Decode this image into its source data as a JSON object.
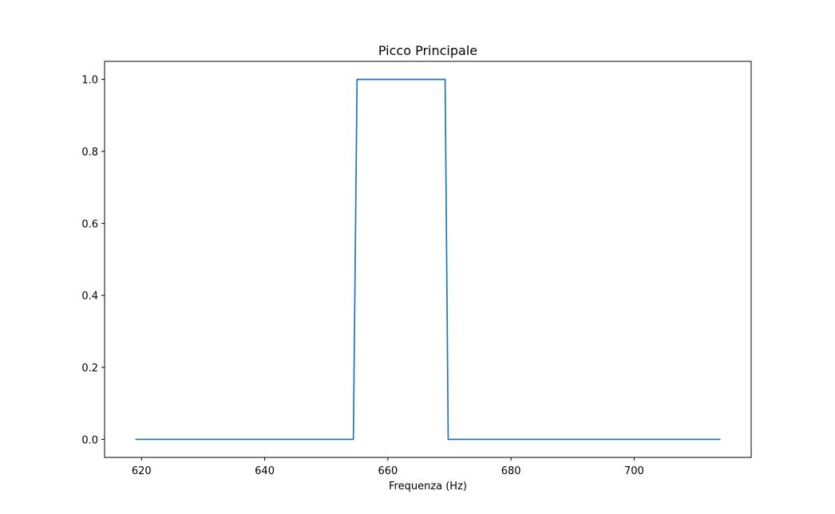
{
  "chart_data": {
    "type": "line",
    "title": "Picco Principale",
    "xlabel": "Frequenza (Hz)",
    "ylabel": "",
    "xlim": [
      614,
      719
    ],
    "ylim": [
      -0.05,
      1.05
    ],
    "xticks": [
      620,
      640,
      660,
      680,
      700
    ],
    "yticks": [
      0.0,
      0.2,
      0.4,
      0.6,
      0.8,
      1.0
    ],
    "xtick_labels": [
      "620",
      "640",
      "660",
      "680",
      "700"
    ],
    "ytick_labels": [
      "0.0",
      "0.2",
      "0.4",
      "0.6",
      "0.8",
      "1.0"
    ],
    "grid": false,
    "series": [
      {
        "color": "#1f77b4",
        "x": [
          619,
          654.4,
          655,
          669.3,
          669.8,
          714
        ],
        "y": [
          0,
          0,
          1,
          1,
          0,
          0
        ]
      }
    ]
  }
}
